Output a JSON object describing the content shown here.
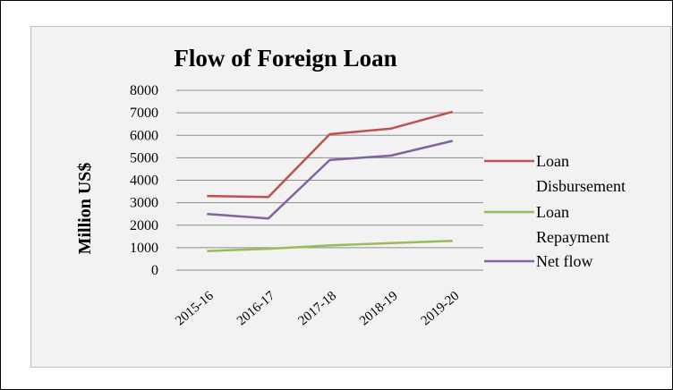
{
  "chart_data": {
    "type": "line",
    "title": "Flow of Foreign Loan",
    "xlabel": "",
    "ylabel": "Million US$",
    "categories": [
      "2015-16",
      "2016-17",
      "2017-18",
      "2018-19",
      "2019-20"
    ],
    "ylim": [
      0,
      8000
    ],
    "yticks": [
      0,
      1000,
      2000,
      3000,
      4000,
      5000,
      6000,
      7000,
      8000
    ],
    "grid": true,
    "legend_position": "right",
    "series": [
      {
        "name": "Loan Disbursement",
        "legend_lines": [
          "Loan",
          "Disbursement"
        ],
        "color": "#c0504d",
        "values": [
          3300,
          3250,
          6050,
          6300,
          7050
        ]
      },
      {
        "name": "Loan Repayment",
        "legend_lines": [
          "Loan",
          "Repayment"
        ],
        "color": "#9bbb59",
        "values": [
          850,
          950,
          1100,
          1200,
          1300
        ]
      },
      {
        "name": "Net flow",
        "legend_lines": [
          "Net flow"
        ],
        "color": "#8064a2",
        "values": [
          2500,
          2300,
          4900,
          5100,
          5750
        ]
      }
    ]
  }
}
